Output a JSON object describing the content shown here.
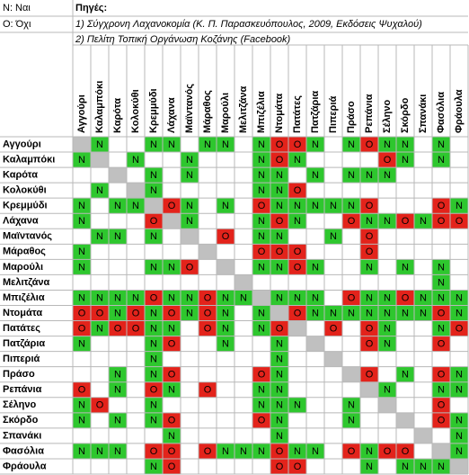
{
  "legend": [
    "Ν: Ναι",
    "Ο: Όχι"
  ],
  "sources": {
    "title": "Πηγές:",
    "items": [
      "1) Σύγχρονη Λαχανοκομία (Κ. Π. Παρασκευόπουλος, 2009, Εκδόσεις Ψυχαλού)",
      "2) Πελίτη Τοπική Οργάνωση Κοζάνης (Facebook)"
    ]
  },
  "vegetables": [
    "Αγγούρι",
    "Καλαμπόκι",
    "Καρότα",
    "Κολοκύθι",
    "Κρεμμύδι",
    "Λάχανα",
    "Μαϊντανός",
    "Μάραθος",
    "Μαρούλι",
    "Μελιτζάνα",
    "Μπιζέλια",
    "Ντομάτα",
    "Πατάτες",
    "Πατζάρια",
    "Πιπεριά",
    "Πράσο",
    "Ρεπάνια",
    "Σέληνο",
    "Σκόρδο",
    "Σπανάκι",
    "Φασόλια",
    "Φράουλα"
  ],
  "table": {
    "rows": [
      [
        null,
        "Ν",
        null,
        null,
        "Ν",
        "Ν",
        null,
        "Ν",
        "Ν",
        null,
        "Ν",
        "Ο",
        "Ο",
        "Ν",
        null,
        "Ν",
        "Ο",
        "Ν",
        "Ν",
        null,
        "Ν",
        null
      ],
      [
        "Ν",
        null,
        null,
        "Ν",
        null,
        null,
        "Ν",
        null,
        null,
        null,
        "Ν",
        "Ο",
        "Ν",
        null,
        null,
        null,
        null,
        "Ο",
        "Ν",
        null,
        "Ν",
        null
      ],
      [
        null,
        null,
        null,
        null,
        "Ν",
        null,
        "Ν",
        null,
        null,
        null,
        "Ν",
        "Ν",
        null,
        "Ν",
        null,
        "Ν",
        "Ν",
        "Ν",
        null,
        null,
        null,
        null
      ],
      [
        null,
        "Ν",
        null,
        null,
        "Ν",
        null,
        null,
        null,
        null,
        null,
        "Ν",
        "Ν",
        "Ο",
        null,
        null,
        null,
        null,
        null,
        null,
        null,
        null,
        null
      ],
      [
        "Ν",
        null,
        "Ν",
        "Ν",
        null,
        "Ο",
        "Ν",
        null,
        "Ν",
        null,
        "Ο",
        "Ν",
        "Ν",
        "Ν",
        "Ν",
        "Ν",
        "Ο",
        null,
        null,
        null,
        "Ο",
        "Ν"
      ],
      [
        "Ν",
        null,
        null,
        null,
        "Ο",
        null,
        "Ν",
        null,
        null,
        null,
        "Ν",
        "Ο",
        "Ν",
        null,
        null,
        "Ο",
        "Ν",
        "Ν",
        "Ο",
        "Ν",
        "Ο",
        "Ο"
      ],
      [
        null,
        "Ν",
        "Ν",
        null,
        "Ν",
        null,
        null,
        null,
        "Ο",
        null,
        "Ν",
        "Ν",
        null,
        null,
        "Ν",
        null,
        "Ο",
        null,
        null,
        null,
        null,
        null
      ],
      [
        "Ν",
        null,
        null,
        null,
        null,
        null,
        null,
        null,
        null,
        null,
        "Ο",
        "Ο",
        "Ο",
        null,
        null,
        null,
        "Ο",
        null,
        null,
        null,
        null,
        null
      ],
      [
        "Ν",
        null,
        null,
        null,
        "Ν",
        "Ν",
        "Ο",
        null,
        null,
        null,
        "Ν",
        "Ν",
        "Ο",
        "Ν",
        null,
        null,
        "Ν",
        null,
        "Ν",
        null,
        "Ν",
        null
      ],
      [
        null,
        null,
        null,
        null,
        null,
        null,
        null,
        null,
        null,
        null,
        null,
        null,
        null,
        null,
        null,
        null,
        null,
        null,
        null,
        null,
        "Ν",
        null
      ],
      [
        "Ν",
        "Ν",
        "Ν",
        "Ν",
        "Ο",
        "Ν",
        "Ν",
        "Ο",
        "Ν",
        "Ν",
        null,
        "Ν",
        "Ν",
        "Ν",
        null,
        "Ο",
        "Ν",
        "Ν",
        "Ο",
        "Ν",
        "Ν",
        "Ν"
      ],
      [
        "Ο",
        "Ο",
        "Ν",
        "Ο",
        "Ν",
        "Ο",
        "Ν",
        "Ο",
        "Ν",
        null,
        "Ν",
        null,
        "Ο",
        "Ν",
        "Ν",
        "Ν",
        "Ν",
        "Ν",
        "Ν",
        "Ν",
        "Ο",
        "Ν"
      ],
      [
        "Ο",
        "Ν",
        "Ο",
        "Ο",
        "Ν",
        "Ν",
        null,
        "Ο",
        "Ν",
        null,
        "Ν",
        "Ο",
        null,
        null,
        "Ο",
        null,
        "Ο",
        "Ν",
        null,
        null,
        "Ν",
        "Ο"
      ],
      [
        "Ν",
        null,
        null,
        null,
        "Ν",
        "Ο",
        null,
        null,
        "Ν",
        null,
        null,
        "Ν",
        null,
        null,
        null,
        null,
        "Ο",
        "Ν",
        null,
        null,
        "Ο",
        null
      ],
      [
        null,
        null,
        null,
        null,
        "Ν",
        null,
        null,
        null,
        null,
        null,
        null,
        "Ν",
        null,
        null,
        null,
        null,
        null,
        null,
        null,
        null,
        null,
        null
      ],
      [
        null,
        null,
        "Ν",
        null,
        "Ν",
        "Ο",
        null,
        null,
        null,
        null,
        "Ο",
        "Ν",
        null,
        null,
        null,
        null,
        "Ο",
        null,
        "Ν",
        null,
        "Ο",
        "Ν"
      ],
      [
        "Ο",
        null,
        "Ν",
        null,
        "Ο",
        "Ν",
        null,
        "Ο",
        null,
        null,
        "Ν",
        "Ν",
        null,
        null,
        null,
        null,
        null,
        "Ν",
        null,
        null,
        "Ν",
        "Ν"
      ],
      [
        "Ν",
        "Ο",
        null,
        null,
        "Ν",
        null,
        null,
        null,
        null,
        null,
        "Ν",
        "Ν",
        "Ν",
        null,
        null,
        "Ν",
        null,
        null,
        null,
        null,
        "Ο",
        null
      ],
      [
        "Ν",
        null,
        "Ν",
        null,
        "Ν",
        "Ο",
        null,
        null,
        null,
        null,
        "Ο",
        "Ν",
        null,
        null,
        null,
        "Ν",
        null,
        null,
        null,
        null,
        "Ο",
        "Ν"
      ],
      [
        null,
        null,
        null,
        null,
        null,
        "Ν",
        null,
        null,
        null,
        null,
        null,
        "Ν",
        null,
        null,
        null,
        null,
        null,
        null,
        null,
        null,
        null,
        "Ν"
      ],
      [
        "Ν",
        "Ν",
        "Ν",
        null,
        "Ο",
        "Ο",
        null,
        "Ο",
        "Ν",
        "Ν",
        "Ν",
        "Ο",
        "Ν",
        "Ν",
        null,
        "Ο",
        "Ν",
        "Ο",
        "Ο",
        null,
        null,
        "Ν"
      ],
      [
        null,
        null,
        null,
        null,
        "Ν",
        "Ο",
        null,
        null,
        null,
        null,
        null,
        "Ο",
        "Ο",
        null,
        null,
        null,
        "Ν",
        null,
        "Ν",
        "Ν",
        "Ν",
        null
      ]
    ]
  }
}
